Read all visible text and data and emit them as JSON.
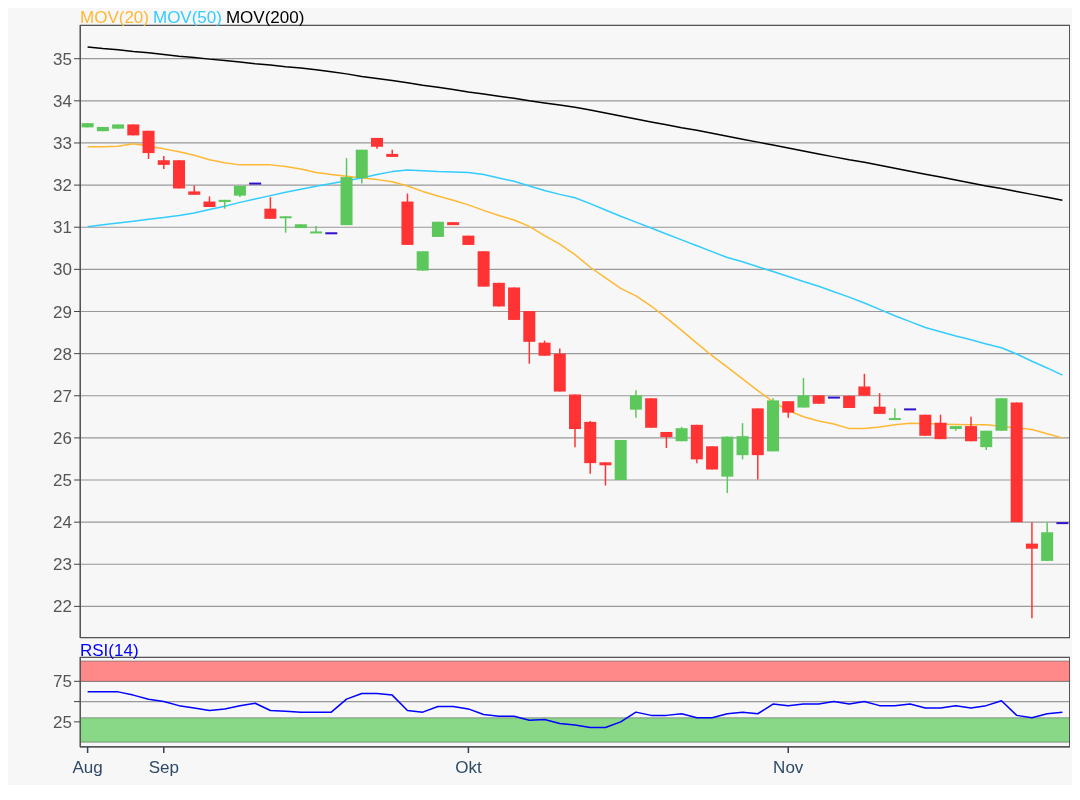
{
  "chart_data": [
    {
      "type": "candlestick",
      "categories": [
        null,
        null,
        null,
        null,
        null,
        null,
        null,
        null,
        null,
        null,
        null,
        null,
        null,
        null,
        null,
        null,
        null,
        null,
        null,
        null,
        null,
        null,
        null,
        null,
        null,
        null,
        null,
        null,
        null,
        null,
        null,
        null,
        null,
        null,
        null,
        null,
        null,
        null,
        null,
        null,
        null,
        null,
        null,
        null,
        null,
        null,
        null,
        null,
        null,
        null,
        null,
        null,
        null,
        null,
        null,
        null,
        null,
        null,
        null,
        null,
        null,
        null,
        null,
        null,
        null
      ],
      "ohlc": [
        [
          33.37,
          33.47,
          33.37,
          33.47
        ],
        [
          33.28,
          33.38,
          33.28,
          33.38
        ],
        [
          33.34,
          33.44,
          33.34,
          33.44
        ],
        [
          33.44,
          33.44,
          33.18,
          33.18
        ],
        [
          33.29,
          33.29,
          32.62,
          32.76
        ],
        [
          32.59,
          32.69,
          32.38,
          32.48
        ],
        [
          32.59,
          32.59,
          31.92,
          31.92
        ],
        [
          31.85,
          31.99,
          31.77,
          31.77
        ],
        [
          31.61,
          31.73,
          31.48,
          31.48
        ],
        [
          31.6,
          31.65,
          31.44,
          31.65
        ],
        [
          31.75,
          31.98,
          31.72,
          31.98
        ],
        [
          32.06,
          32.06,
          32.06,
          32.06
        ],
        [
          31.44,
          31.71,
          31.2,
          31.2
        ],
        [
          31.22,
          31.26,
          30.87,
          31.26
        ],
        [
          30.98,
          31.07,
          30.98,
          31.07
        ],
        [
          30.88,
          31.03,
          30.88,
          30.9
        ],
        [
          30.88,
          30.88,
          30.88,
          30.88
        ],
        [
          31.05,
          32.64,
          31.05,
          32.19
        ],
        [
          32.17,
          32.84,
          32.04,
          32.84
        ],
        [
          33.12,
          33.12,
          32.86,
          32.91
        ],
        [
          32.74,
          32.84,
          32.67,
          32.67
        ],
        [
          31.61,
          31.8,
          30.58,
          30.58
        ],
        [
          29.97,
          30.43,
          29.97,
          30.43
        ],
        [
          30.77,
          31.13,
          30.77,
          31.13
        ],
        [
          31.12,
          31.12,
          31.05,
          31.05
        ],
        [
          30.8,
          30.8,
          30.58,
          30.58
        ],
        [
          30.43,
          30.43,
          29.59,
          29.59
        ],
        [
          29.68,
          29.68,
          29.12,
          29.12
        ],
        [
          29.57,
          29.57,
          28.8,
          28.8
        ],
        [
          29.01,
          29.01,
          27.76,
          28.28
        ],
        [
          28.26,
          28.31,
          27.95,
          27.95
        ],
        [
          28.0,
          28.12,
          27.1,
          27.1
        ],
        [
          27.03,
          27.03,
          25.78,
          26.21
        ],
        [
          26.38,
          26.4,
          25.15,
          25.4
        ],
        [
          25.42,
          25.42,
          24.87,
          25.35
        ],
        [
          25.0,
          25.95,
          25.0,
          25.95
        ],
        [
          26.67,
          27.13,
          26.48,
          27.01
        ],
        [
          26.94,
          26.94,
          26.24,
          26.24
        ],
        [
          26.14,
          26.14,
          25.76,
          26.02
        ],
        [
          25.92,
          26.26,
          25.92,
          26.23
        ],
        [
          26.31,
          26.31,
          25.4,
          25.49
        ],
        [
          25.8,
          25.8,
          25.25,
          25.25
        ],
        [
          25.08,
          26.03,
          24.69,
          26.03
        ],
        [
          25.59,
          26.35,
          25.49,
          26.04
        ],
        [
          26.7,
          26.7,
          25.01,
          25.59
        ],
        [
          25.68,
          26.94,
          25.68,
          26.89
        ],
        [
          26.87,
          26.87,
          26.48,
          26.6
        ],
        [
          26.72,
          27.42,
          26.72,
          27.01
        ],
        [
          27.01,
          27.01,
          26.81,
          26.81
        ],
        [
          26.98,
          26.98,
          26.98,
          26.98
        ],
        [
          27.0,
          27.0,
          26.71,
          26.71
        ],
        [
          27.22,
          27.52,
          27.0,
          27.0
        ],
        [
          26.74,
          27.06,
          26.57,
          26.57
        ],
        [
          26.43,
          26.7,
          26.43,
          26.47
        ],
        [
          26.7,
          26.7,
          26.7,
          26.7
        ],
        [
          26.55,
          26.55,
          26.05,
          26.05
        ],
        [
          26.36,
          26.55,
          25.97,
          25.97
        ],
        [
          26.21,
          26.28,
          26.17,
          26.28
        ],
        [
          26.28,
          26.5,
          25.92,
          25.92
        ],
        [
          25.78,
          26.17,
          25.71,
          26.17
        ],
        [
          26.17,
          26.94,
          26.17,
          26.94
        ],
        [
          26.84,
          26.84,
          24.0,
          24.0
        ],
        [
          23.49,
          24.0,
          21.72,
          23.37
        ],
        [
          23.08,
          24.0,
          23.08,
          23.76
        ],
        [
          24.0,
          24.0,
          24.0,
          24.0
        ]
      ],
      "colors": [
        "#5cc85c",
        "#5cc85c",
        "#5cc85c",
        "#ff3333",
        "#ff3333",
        "#ff3333",
        "#ff3333",
        "#ff3333",
        "#ff3333",
        "#5cc85c",
        "#5cc85c",
        "#3311cc",
        "#ff3333",
        "#5cc85c",
        "#5cc85c",
        "#5cc85c",
        "#3311cc",
        "#5cc85c",
        "#5cc85c",
        "#ff3333",
        "#ff3333",
        "#ff3333",
        "#5cc85c",
        "#5cc85c",
        "#ff3333",
        "#ff3333",
        "#ff3333",
        "#ff3333",
        "#ff3333",
        "#ff3333",
        "#ff3333",
        "#ff3333",
        "#ff3333",
        "#ff3333",
        "#ff3333",
        "#5cc85c",
        "#5cc85c",
        "#ff3333",
        "#ff3333",
        "#5cc85c",
        "#ff3333",
        "#ff3333",
        "#5cc85c",
        "#5cc85c",
        "#ff3333",
        "#5cc85c",
        "#ff3333",
        "#5cc85c",
        "#ff3333",
        "#3311cc",
        "#ff3333",
        "#ff3333",
        "#ff3333",
        "#5cc85c",
        "#3311cc",
        "#ff3333",
        "#ff3333",
        "#5cc85c",
        "#ff3333",
        "#5cc85c",
        "#5cc85c",
        "#ff3333",
        "#ff3333",
        "#5cc85c",
        "#3311cc"
      ],
      "series": [
        {
          "name": "MOV(20)",
          "type": "line",
          "color": "#ffb833",
          "values": [
            32.91,
            32.91,
            32.92,
            32.98,
            null,
            32.86,
            32.79,
            32.71,
            32.6,
            32.53,
            32.48,
            32.48,
            32.48,
            32.44,
            32.38,
            32.3,
            32.25,
            32.21,
            32.17,
            32.13,
            32.08,
            31.98,
            31.85,
            31.74,
            31.64,
            31.53,
            31.4,
            31.28,
            31.17,
            31.02,
            30.8,
            30.6,
            30.35,
            30.05,
            29.8,
            29.55,
            29.37,
            29.13,
            28.85,
            28.55,
            28.25,
            27.95,
            27.68,
            27.4,
            27.12,
            26.86,
            26.65,
            26.5,
            26.4,
            26.33,
            26.22,
            26.22,
            26.26,
            26.31,
            26.35,
            null,
            null,
            26.32,
            26.31,
            26.31,
            null,
            null,
            26.2,
            26.1,
            26.0
          ]
        },
        {
          "name": "MOV(50)",
          "type": "line",
          "color": "#33ccff",
          "values": [
            31.01,
            31.06,
            31.1,
            31.14,
            31.19,
            31.23,
            31.28,
            31.34,
            31.42,
            31.5,
            31.59,
            31.67,
            31.75,
            31.83,
            31.9,
            31.97,
            32.04,
            null,
            32.17,
            32.25,
            32.32,
            32.36,
            32.34,
            32.32,
            32.31,
            32.3,
            32.25,
            32.17,
            32.09,
            31.98,
            31.87,
            31.78,
            31.7,
            31.56,
            31.41,
            31.26,
            31.12,
            30.98,
            30.84,
            30.7,
            30.56,
            30.42,
            30.28,
            30.18,
            30.06,
            29.95,
            29.83,
            29.71,
            29.6,
            29.47,
            29.34,
            29.2,
            29.05,
            28.9,
            28.76,
            28.62,
            28.52,
            28.42,
            28.33,
            28.23,
            28.14,
            27.99,
            27.82,
            27.66,
            27.49
          ]
        },
        {
          "name": "MOV(200)",
          "type": "line",
          "color": "#000000",
          "values": [
            35.28,
            35.24,
            35.21,
            35.17,
            35.14,
            35.1,
            35.06,
            35.03,
            34.99,
            34.96,
            34.92,
            34.88,
            34.85,
            34.81,
            34.78,
            34.74,
            34.69,
            34.64,
            34.58,
            34.53,
            34.48,
            34.43,
            34.37,
            34.32,
            34.27,
            34.21,
            34.16,
            34.11,
            34.06,
            34.0,
            33.95,
            33.9,
            33.85,
            33.78,
            33.71,
            33.64,
            33.57,
            33.5,
            33.43,
            33.36,
            33.3,
            33.23,
            33.16,
            33.09,
            33.02,
            32.95,
            32.88,
            32.81,
            32.74,
            32.67,
            32.6,
            32.54,
            32.47,
            32.4,
            32.33,
            32.26,
            32.19,
            32.12,
            32.05,
            31.98,
            31.92,
            31.85,
            31.78,
            31.71,
            31.64
          ]
        }
      ],
      "ylim": [
        21.25,
        35.8
      ],
      "yticks": [
        22,
        23,
        24,
        25,
        26,
        27,
        28,
        29,
        30,
        31,
        32,
        33,
        34,
        35
      ],
      "grid": "y",
      "legend": "top left",
      "tick_labels": "y"
    },
    {
      "type": "line",
      "categories": [
        "Aug",
        null,
        null,
        null,
        null,
        "Sep",
        null,
        null,
        null,
        null,
        null,
        null,
        null,
        null,
        null,
        null,
        null,
        null,
        null,
        null,
        null,
        null,
        null,
        null,
        null,
        "Okt",
        null,
        null,
        null,
        null,
        null,
        null,
        null,
        null,
        null,
        null,
        null,
        null,
        null,
        null,
        null,
        null,
        null,
        null,
        null,
        null,
        "Nov",
        null,
        null,
        null,
        null,
        null,
        null,
        null,
        null,
        null,
        null,
        null,
        null,
        null,
        null,
        null,
        null,
        null,
        null
      ],
      "series": [
        {
          "name": "RSI(14)",
          "color": "#0000ff",
          "values": [
            62,
            62,
            62,
            58,
            53,
            50,
            45,
            42,
            39,
            41,
            45,
            48,
            39,
            38,
            37,
            37,
            37,
            53,
            60,
            60,
            58,
            39,
            37,
            44,
            44,
            41,
            34,
            32,
            32,
            27,
            28,
            23,
            21,
            18,
            18,
            25,
            37,
            33,
            33,
            35,
            30,
            30,
            35,
            37,
            35,
            47,
            45,
            47,
            47,
            50,
            47,
            50,
            45,
            45,
            47,
            42,
            42,
            45,
            42,
            45,
            51,
            33,
            30,
            35,
            37
          ]
        }
      ],
      "bands": [
        {
          "axis": "y",
          "from": 75,
          "to": 100,
          "color": "#ff8888"
        },
        {
          "axis": "y",
          "from": 0,
          "to": 30,
          "color": "#88d888"
        }
      ],
      "ylim": [
        -6,
        105
      ],
      "yticks": [
        25,
        {
          "value": 50,
          "label": null
        },
        75
      ],
      "grid": "y",
      "legend": "top left"
    }
  ]
}
